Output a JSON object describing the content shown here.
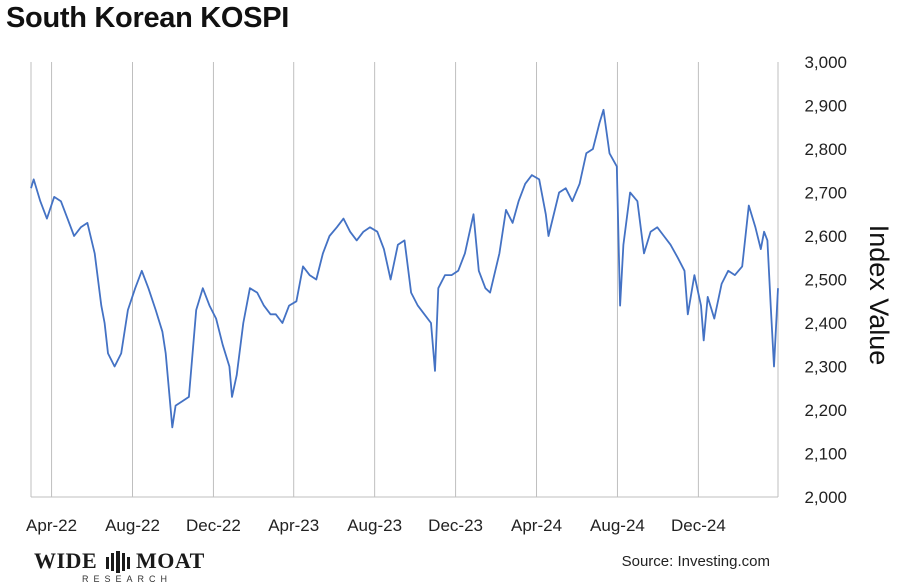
{
  "title": "South Korean KOSPI",
  "source": "Source: Investing.com",
  "logo": {
    "left": "WIDE",
    "right": "MOAT",
    "sub": "RESEARCH"
  },
  "chart_data": {
    "type": "line",
    "ylabel": "Index Value",
    "ylim": [
      2000,
      3000
    ],
    "y_axis_side": "right",
    "yticks": [
      "2,000",
      "2,100",
      "2,200",
      "2,300",
      "2,400",
      "2,500",
      "2,600",
      "2,700",
      "2,800",
      "2,900",
      "3,000"
    ],
    "x_tick_labels": [
      "Apr-22",
      "Aug-22",
      "Dec-22",
      "Apr-23",
      "Aug-23",
      "Dec-23",
      "Apr-24",
      "Aug-24",
      "Dec-24"
    ],
    "x_range": [
      "2022-03-01",
      "2025-03-31"
    ],
    "grid": "vertical",
    "line_color": "#4472C4",
    "series": [
      {
        "x": [
          "2022-03-01",
          "2022-03-05",
          "2022-03-15",
          "2022-03-25",
          "2022-04-05",
          "2022-04-15",
          "2022-04-25",
          "2022-05-05",
          "2022-05-15",
          "2022-05-25",
          "2022-06-05",
          "2022-06-15",
          "2022-06-20",
          "2022-06-25",
          "2022-07-05",
          "2022-07-15",
          "2022-07-25",
          "2022-08-05",
          "2022-08-15",
          "2022-08-25",
          "2022-09-05",
          "2022-09-15",
          "2022-09-20",
          "2022-09-30",
          "2022-10-05",
          "2022-10-15",
          "2022-10-25",
          "2022-11-05",
          "2022-11-15",
          "2022-11-25",
          "2022-12-05",
          "2022-12-15",
          "2022-12-25",
          "2022-12-29",
          "2023-01-05",
          "2023-01-15",
          "2023-01-25",
          "2023-02-05",
          "2023-02-15",
          "2023-02-25",
          "2023-03-05",
          "2023-03-15",
          "2023-03-25",
          "2023-04-05",
          "2023-04-15",
          "2023-04-25",
          "2023-05-05",
          "2023-05-15",
          "2023-05-25",
          "2023-06-05",
          "2023-06-15",
          "2023-06-25",
          "2023-07-05",
          "2023-07-15",
          "2023-07-25",
          "2023-08-05",
          "2023-08-15",
          "2023-08-25",
          "2023-09-05",
          "2023-09-15",
          "2023-09-25",
          "2023-10-05",
          "2023-10-15",
          "2023-10-25",
          "2023-10-31",
          "2023-11-05",
          "2023-11-15",
          "2023-11-25",
          "2023-12-05",
          "2023-12-15",
          "2023-12-28",
          "2024-01-05",
          "2024-01-15",
          "2024-01-22",
          "2024-02-05",
          "2024-02-15",
          "2024-02-25",
          "2024-03-05",
          "2024-03-15",
          "2024-03-25",
          "2024-04-05",
          "2024-04-15",
          "2024-04-19",
          "2024-05-05",
          "2024-05-15",
          "2024-05-25",
          "2024-06-05",
          "2024-06-15",
          "2024-06-25",
          "2024-07-05",
          "2024-07-11",
          "2024-07-20",
          "2024-07-31",
          "2024-08-05",
          "2024-08-10",
          "2024-08-20",
          "2024-08-31",
          "2024-09-10",
          "2024-09-20",
          "2024-09-30",
          "2024-10-10",
          "2024-10-20",
          "2024-10-31",
          "2024-11-10",
          "2024-11-15",
          "2024-11-25",
          "2024-12-05",
          "2024-12-09",
          "2024-12-15",
          "2024-12-25",
          "2025-01-05",
          "2025-01-15",
          "2025-01-25",
          "2025-02-05",
          "2025-02-15",
          "2025-02-25",
          "2025-03-05",
          "2025-03-10",
          "2025-03-15",
          "2025-03-20",
          "2025-03-25",
          "2025-03-31"
        ],
        "y": [
          2710,
          2730,
          2680,
          2640,
          2690,
          2680,
          2640,
          2600,
          2620,
          2630,
          2560,
          2440,
          2400,
          2330,
          2300,
          2330,
          2430,
          2480,
          2520,
          2480,
          2430,
          2380,
          2330,
          2160,
          2210,
          2220,
          2230,
          2430,
          2480,
          2440,
          2410,
          2350,
          2300,
          2230,
          2280,
          2400,
          2480,
          2470,
          2440,
          2420,
          2420,
          2400,
          2440,
          2450,
          2530,
          2510,
          2500,
          2560,
          2600,
          2620,
          2640,
          2610,
          2590,
          2610,
          2620,
          2610,
          2570,
          2500,
          2580,
          2590,
          2470,
          2440,
          2420,
          2400,
          2290,
          2480,
          2510,
          2510,
          2520,
          2560,
          2650,
          2520,
          2480,
          2470,
          2560,
          2660,
          2630,
          2680,
          2720,
          2740,
          2730,
          2650,
          2600,
          2700,
          2710,
          2680,
          2720,
          2790,
          2800,
          2860,
          2890,
          2790,
          2760,
          2440,
          2580,
          2700,
          2680,
          2560,
          2610,
          2620,
          2600,
          2580,
          2550,
          2520,
          2420,
          2510,
          2440,
          2360,
          2460,
          2410,
          2490,
          2520,
          2510,
          2530,
          2670,
          2620,
          2570,
          2610,
          2590,
          2440,
          2300,
          2480
        ]
      }
    ]
  }
}
